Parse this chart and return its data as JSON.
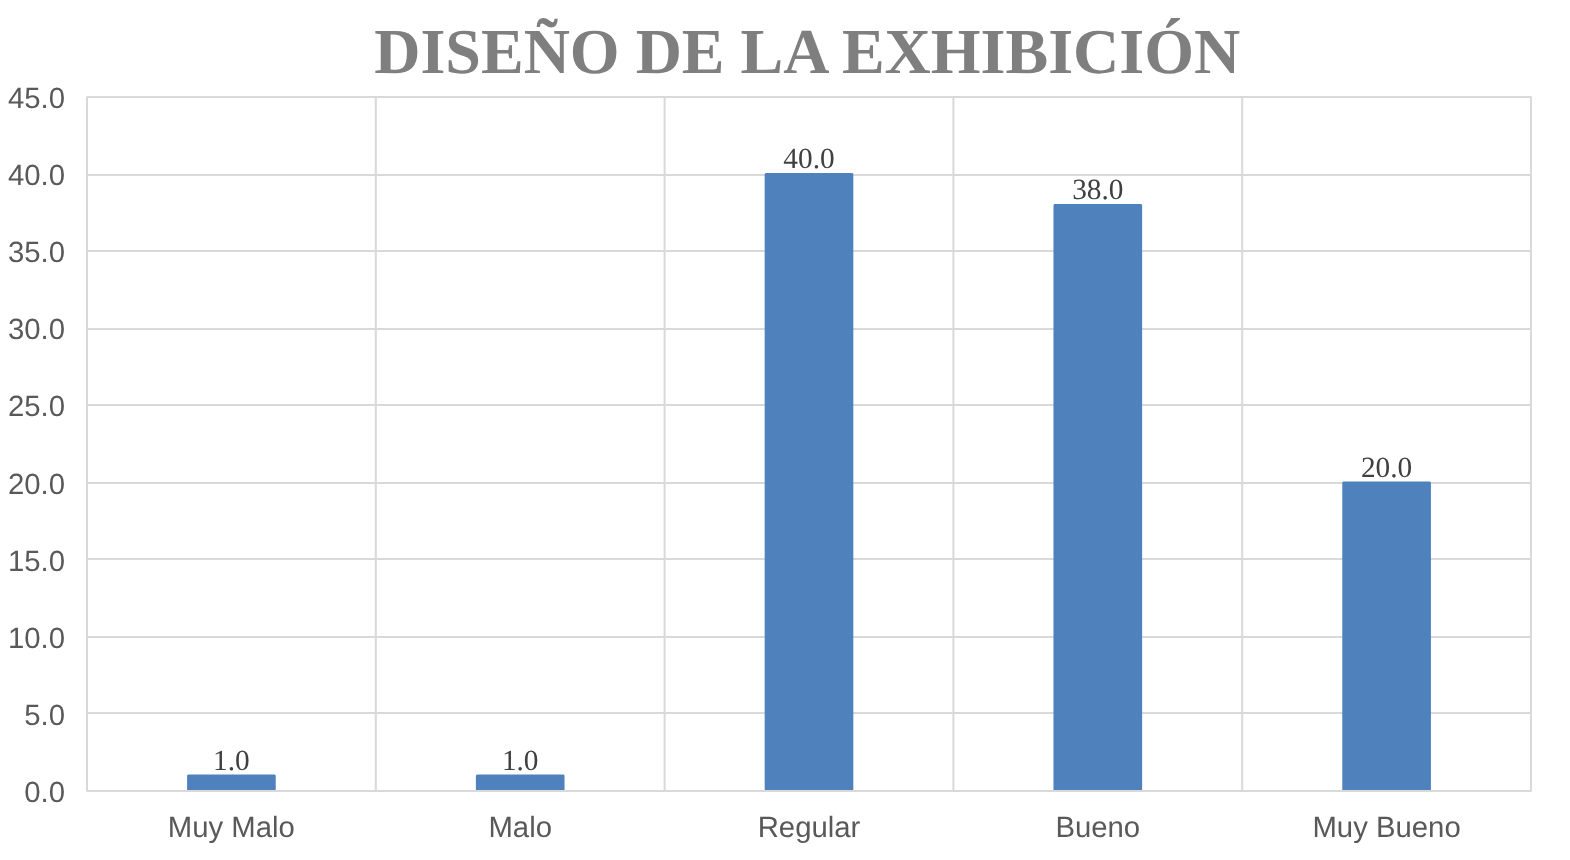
{
  "chart_data": {
    "type": "bar",
    "title": "DISEÑO DE LA EXHIBICIÓN",
    "categories": [
      "Muy Malo",
      "Malo",
      "Regular",
      "Bueno",
      "Muy Bueno"
    ],
    "values": [
      1.0,
      1.0,
      40.0,
      38.0,
      20.0
    ],
    "value_labels": [
      "1.0",
      "1.0",
      "40.0",
      "38.0",
      "20.0"
    ],
    "color": "#4f81bd",
    "ylim": [
      0,
      45
    ],
    "yticks": [
      {
        "value": 0,
        "label": "0.0"
      },
      {
        "value": 5,
        "label": "5.0"
      },
      {
        "value": 10,
        "label": "10.0"
      },
      {
        "value": 15,
        "label": "15.0"
      },
      {
        "value": 20,
        "label": "20.0"
      },
      {
        "value": 25,
        "label": "25.0"
      },
      {
        "value": 30,
        "label": "30.0"
      },
      {
        "value": 35,
        "label": "35.0"
      },
      {
        "value": 40,
        "label": "40.0"
      },
      {
        "value": 45,
        "label": "45.0"
      }
    ],
    "grid": true
  }
}
